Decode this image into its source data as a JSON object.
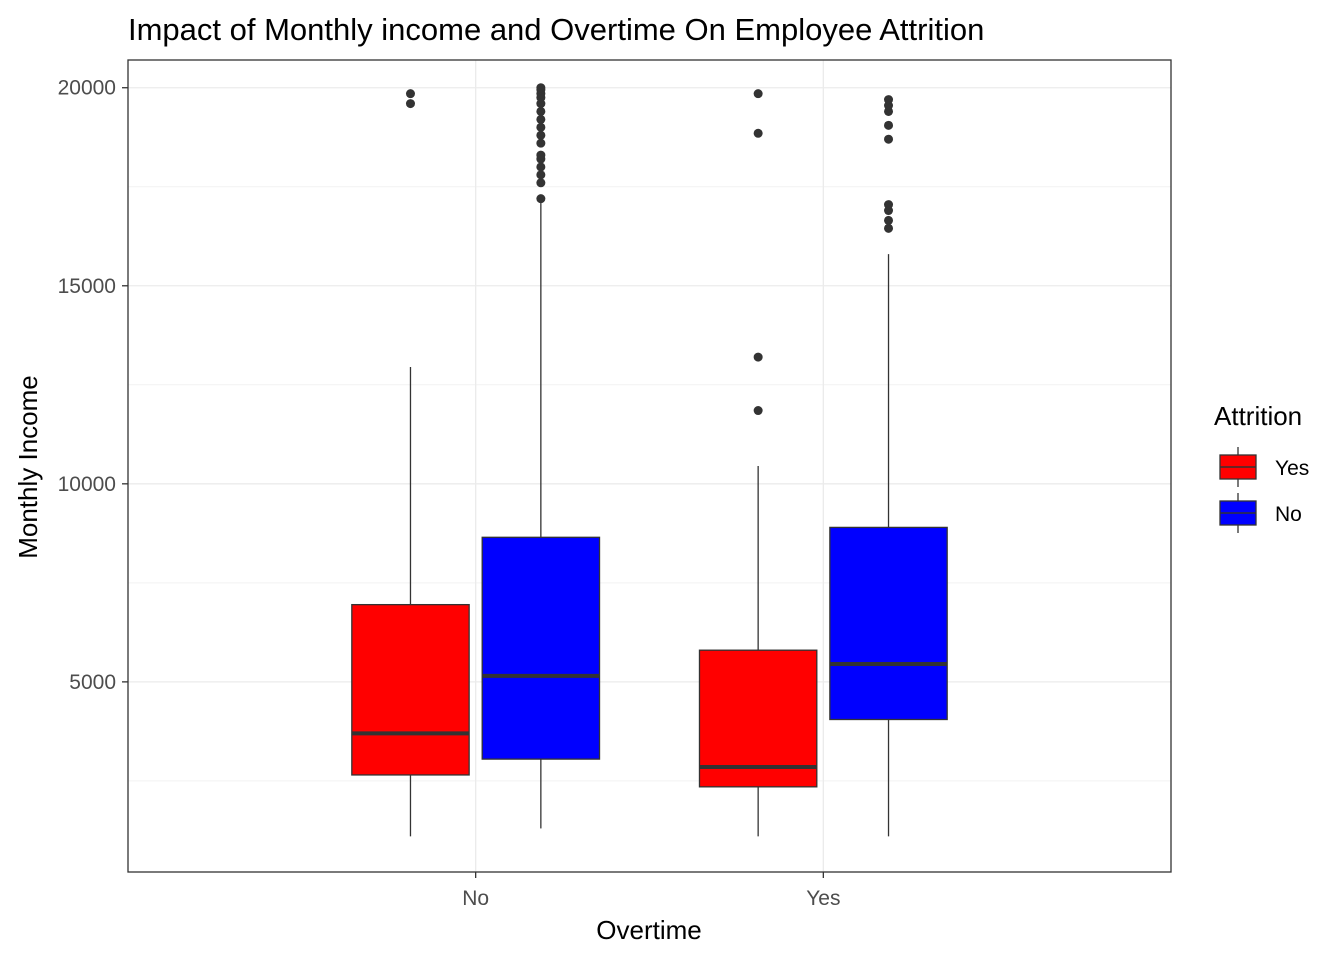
{
  "chart_data": {
    "type": "box",
    "title": "Impact of Monthly income and Overtime On Employee Attrition",
    "xlabel": "Overtime",
    "ylabel": "Monthly Income",
    "ylim": [
      200,
      20700
    ],
    "y_ticks": [
      5000,
      10000,
      15000,
      20000
    ],
    "y_tick_labels": [
      "5000",
      "10000",
      "15000",
      "20000"
    ],
    "categories": [
      "No",
      "Yes"
    ],
    "grid": true,
    "legend": {
      "title": "Attrition",
      "position": "right",
      "entries": [
        "Yes",
        "No"
      ]
    },
    "series": [
      {
        "name": "Yes",
        "color": "#ff0000",
        "boxes": [
          {
            "category": "No",
            "min": 1100,
            "q1": 2650,
            "median": 3700,
            "q3": 6950,
            "max": 12950,
            "outliers": [
              19850,
              19600
            ]
          },
          {
            "category": "Yes",
            "min": 1100,
            "q1": 2350,
            "median": 2850,
            "q3": 5800,
            "max": 10450,
            "outliers": [
              19850,
              18850,
              13200,
              11850
            ]
          }
        ]
      },
      {
        "name": "No",
        "color": "#0000ff",
        "boxes": [
          {
            "category": "No",
            "min": 1300,
            "q1": 3050,
            "median": 5150,
            "q3": 8650,
            "max": 17150,
            "outliers": [
              17200,
              17600,
              17800,
              18000,
              18200,
              18300,
              18600,
              18800,
              19000,
              19200,
              19400,
              19600,
              19750,
              19850,
              19950,
              20000
            ]
          },
          {
            "category": "Yes",
            "min": 1100,
            "q1": 4050,
            "median": 5450,
            "q3": 8900,
            "max": 15800,
            "outliers": [
              16450,
              16650,
              16900,
              17050,
              18700,
              19050,
              19400,
              19550,
              19700
            ]
          }
        ]
      }
    ]
  }
}
